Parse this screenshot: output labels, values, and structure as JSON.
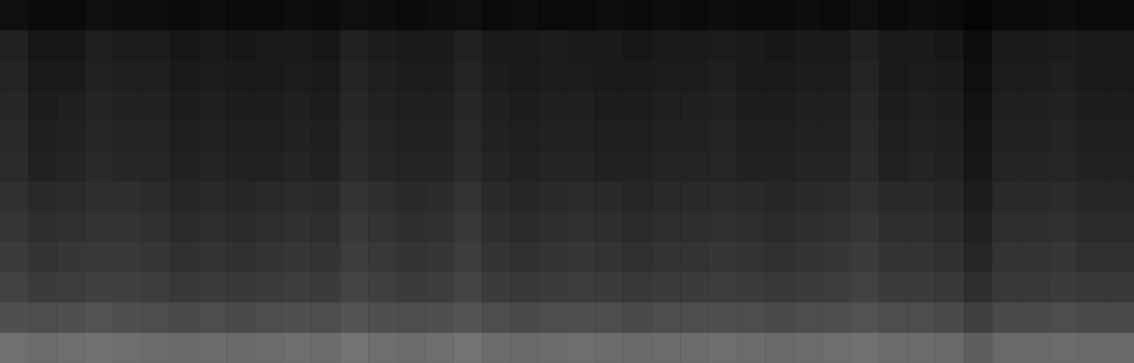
{
  "chart_data": {
    "type": "heatmap",
    "xlim": [
      0,
      40
    ],
    "ylim": [
      0,
      12
    ],
    "tick_labels": false,
    "color_range": [
      0,
      1
    ],
    "cells": [
      [
        0.06,
        0.04,
        0.04,
        0.06,
        0.05,
        0.05,
        0.04,
        0.05,
        0.04,
        0.04,
        0.05,
        0.04,
        0.06,
        0.05,
        0.04,
        0.05,
        0.06,
        0.04,
        0.05,
        0.04,
        0.04,
        0.05,
        0.04,
        0.05,
        0.04,
        0.05,
        0.04,
        0.04,
        0.05,
        0.04,
        0.06,
        0.04,
        0.05,
        0.04,
        0.02,
        0.04,
        0.04,
        0.05,
        0.04,
        0.04
      ],
      [
        0.13,
        0.09,
        0.09,
        0.12,
        0.11,
        0.11,
        0.09,
        0.1,
        0.09,
        0.1,
        0.1,
        0.09,
        0.13,
        0.11,
        0.1,
        0.1,
        0.13,
        0.1,
        0.1,
        0.11,
        0.1,
        0.1,
        0.09,
        0.1,
        0.1,
        0.11,
        0.1,
        0.09,
        0.1,
        0.1,
        0.13,
        0.1,
        0.1,
        0.09,
        0.05,
        0.1,
        0.1,
        0.11,
        0.1,
        0.1
      ],
      [
        0.14,
        0.1,
        0.1,
        0.13,
        0.12,
        0.12,
        0.1,
        0.11,
        0.1,
        0.1,
        0.11,
        0.1,
        0.14,
        0.12,
        0.11,
        0.11,
        0.14,
        0.11,
        0.1,
        0.11,
        0.11,
        0.1,
        0.1,
        0.11,
        0.11,
        0.12,
        0.1,
        0.1,
        0.11,
        0.11,
        0.14,
        0.1,
        0.11,
        0.1,
        0.06,
        0.11,
        0.11,
        0.12,
        0.1,
        0.1
      ],
      [
        0.15,
        0.11,
        0.12,
        0.14,
        0.13,
        0.13,
        0.11,
        0.12,
        0.11,
        0.11,
        0.12,
        0.11,
        0.15,
        0.13,
        0.12,
        0.12,
        0.15,
        0.12,
        0.11,
        0.12,
        0.12,
        0.11,
        0.11,
        0.12,
        0.12,
        0.13,
        0.11,
        0.11,
        0.12,
        0.12,
        0.15,
        0.11,
        0.12,
        0.11,
        0.07,
        0.12,
        0.12,
        0.13,
        0.11,
        0.11
      ],
      [
        0.16,
        0.12,
        0.13,
        0.15,
        0.14,
        0.14,
        0.12,
        0.13,
        0.12,
        0.12,
        0.13,
        0.12,
        0.16,
        0.14,
        0.13,
        0.13,
        0.16,
        0.13,
        0.12,
        0.13,
        0.13,
        0.12,
        0.12,
        0.13,
        0.13,
        0.14,
        0.12,
        0.12,
        0.13,
        0.13,
        0.16,
        0.12,
        0.13,
        0.12,
        0.08,
        0.13,
        0.13,
        0.14,
        0.12,
        0.12
      ],
      [
        0.17,
        0.13,
        0.14,
        0.16,
        0.15,
        0.15,
        0.13,
        0.14,
        0.13,
        0.13,
        0.14,
        0.13,
        0.17,
        0.15,
        0.14,
        0.14,
        0.17,
        0.14,
        0.13,
        0.14,
        0.14,
        0.13,
        0.13,
        0.14,
        0.14,
        0.15,
        0.13,
        0.13,
        0.14,
        0.14,
        0.17,
        0.13,
        0.14,
        0.13,
        0.09,
        0.14,
        0.14,
        0.15,
        0.13,
        0.13
      ],
      [
        0.19,
        0.16,
        0.17,
        0.18,
        0.18,
        0.17,
        0.15,
        0.16,
        0.15,
        0.16,
        0.17,
        0.16,
        0.2,
        0.18,
        0.16,
        0.17,
        0.2,
        0.16,
        0.15,
        0.16,
        0.17,
        0.16,
        0.15,
        0.16,
        0.16,
        0.17,
        0.16,
        0.15,
        0.16,
        0.17,
        0.19,
        0.16,
        0.16,
        0.15,
        0.11,
        0.16,
        0.16,
        0.17,
        0.15,
        0.15
      ],
      [
        0.21,
        0.18,
        0.19,
        0.2,
        0.2,
        0.19,
        0.17,
        0.18,
        0.17,
        0.18,
        0.19,
        0.18,
        0.22,
        0.2,
        0.18,
        0.19,
        0.22,
        0.18,
        0.17,
        0.18,
        0.19,
        0.18,
        0.17,
        0.18,
        0.18,
        0.19,
        0.18,
        0.17,
        0.18,
        0.19,
        0.21,
        0.18,
        0.18,
        0.17,
        0.13,
        0.18,
        0.18,
        0.19,
        0.17,
        0.17
      ],
      [
        0.23,
        0.2,
        0.21,
        0.22,
        0.22,
        0.21,
        0.19,
        0.2,
        0.19,
        0.2,
        0.21,
        0.2,
        0.24,
        0.22,
        0.2,
        0.21,
        0.24,
        0.2,
        0.19,
        0.2,
        0.21,
        0.2,
        0.19,
        0.2,
        0.2,
        0.21,
        0.2,
        0.19,
        0.2,
        0.21,
        0.23,
        0.2,
        0.2,
        0.19,
        0.15,
        0.2,
        0.2,
        0.21,
        0.19,
        0.19
      ],
      [
        0.26,
        0.23,
        0.24,
        0.25,
        0.25,
        0.24,
        0.22,
        0.23,
        0.22,
        0.23,
        0.24,
        0.23,
        0.27,
        0.25,
        0.23,
        0.24,
        0.27,
        0.23,
        0.22,
        0.23,
        0.24,
        0.23,
        0.22,
        0.23,
        0.23,
        0.24,
        0.23,
        0.22,
        0.23,
        0.24,
        0.26,
        0.23,
        0.23,
        0.22,
        0.18,
        0.22,
        0.22,
        0.23,
        0.22,
        0.22
      ],
      [
        0.31,
        0.3,
        0.31,
        0.32,
        0.31,
        0.3,
        0.29,
        0.3,
        0.29,
        0.3,
        0.31,
        0.3,
        0.33,
        0.31,
        0.3,
        0.31,
        0.33,
        0.3,
        0.29,
        0.3,
        0.31,
        0.3,
        0.29,
        0.3,
        0.3,
        0.31,
        0.3,
        0.29,
        0.3,
        0.31,
        0.32,
        0.3,
        0.3,
        0.29,
        0.25,
        0.29,
        0.29,
        0.3,
        0.29,
        0.29
      ],
      [
        0.44,
        0.42,
        0.43,
        0.44,
        0.43,
        0.42,
        0.41,
        0.42,
        0.41,
        0.42,
        0.43,
        0.42,
        0.45,
        0.43,
        0.42,
        0.43,
        0.45,
        0.42,
        0.41,
        0.42,
        0.43,
        0.42,
        0.41,
        0.42,
        0.42,
        0.43,
        0.42,
        0.41,
        0.42,
        0.43,
        0.44,
        0.42,
        0.42,
        0.41,
        0.37,
        0.41,
        0.41,
        0.42,
        0.41,
        0.41
      ]
    ]
  }
}
